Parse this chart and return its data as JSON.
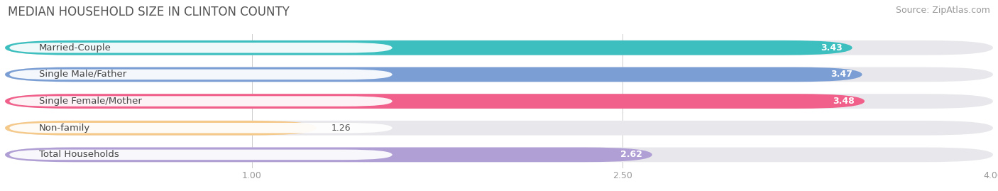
{
  "title": "MEDIAN HOUSEHOLD SIZE IN CLINTON COUNTY",
  "source": "Source: ZipAtlas.com",
  "categories": [
    "Married-Couple",
    "Single Male/Father",
    "Single Female/Mother",
    "Non-family",
    "Total Households"
  ],
  "values": [
    3.43,
    3.47,
    3.48,
    1.26,
    2.62
  ],
  "bar_colors": [
    "#3dbfbf",
    "#7b9fd4",
    "#f0608a",
    "#f5c98a",
    "#b09fd4"
  ],
  "bar_bg_color": "#e8e8ec",
  "xlim_min": 0,
  "xlim_max": 4.0,
  "xticks": [
    1.0,
    2.5,
    4.0
  ],
  "value_threshold": 2.0,
  "background_color": "#ffffff",
  "title_fontsize": 12,
  "source_fontsize": 9,
  "bar_label_fontsize": 9.5,
  "value_fontsize": 9,
  "tick_fontsize": 9,
  "bar_height": 0.55,
  "bar_gap": 0.45
}
